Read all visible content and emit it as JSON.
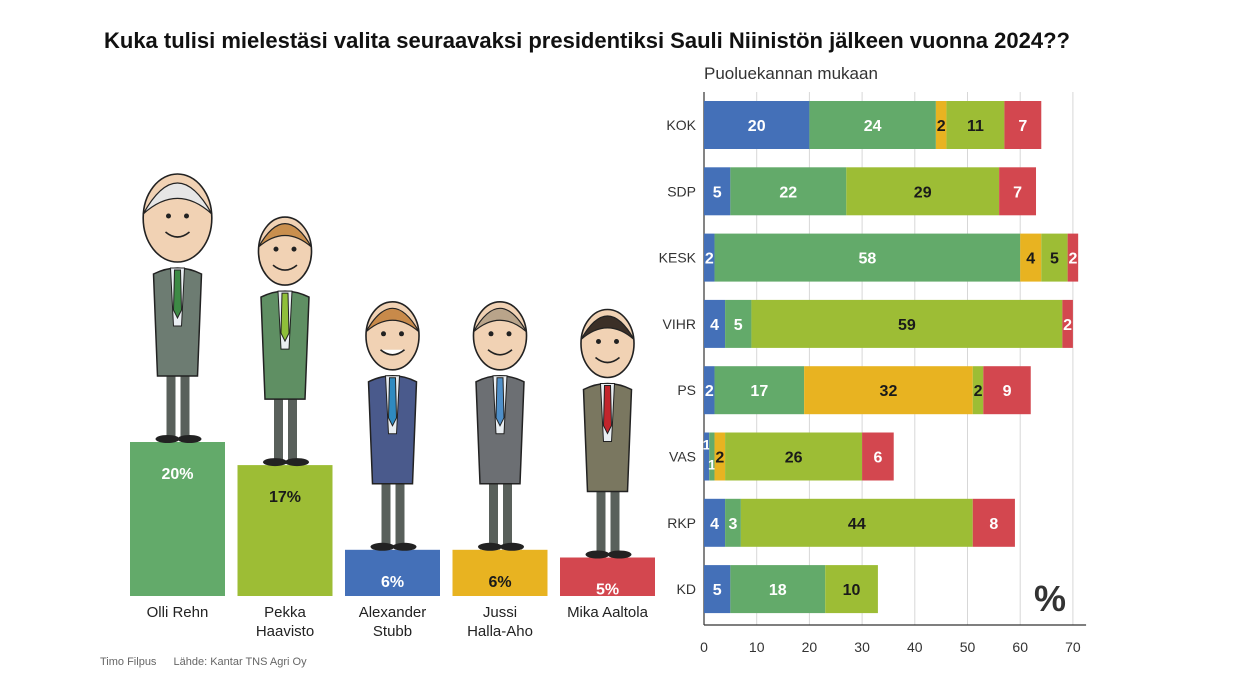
{
  "title": "Kuka tulisi mielestäsi valita seuraavaksi presidentiksi Sauli Niinistön jälkeen vuonna 2024??",
  "subtitle": "Puoluekannan mukaan",
  "credits": {
    "author": "Timo Filpus",
    "source": "Lähde: Kantar TNS Agri Oy"
  },
  "percent_sign": "%",
  "colors": {
    "Alexander Stubb": "#4470b8",
    "Olli Rehn": "#63aa6a",
    "Jussi Halla-aho": "#e8b321",
    "Pekka Haavisto": "#9dbd35",
    "Mika Aaltola": "#d3474f"
  },
  "chart_data": [
    {
      "type": "bar",
      "categories": [
        "Olli Rehn",
        "Pekka Haavisto",
        "Alexander Stubb",
        "Jussi Halla-Aho",
        "Mika Aaltola"
      ],
      "category_lines": [
        [
          "Olli Rehn"
        ],
        [
          "Pekka",
          "Haavisto"
        ],
        [
          "Alexander",
          "Stubb"
        ],
        [
          "Jussi",
          "Halla-Aho"
        ],
        [
          "Mika Aaltola"
        ]
      ],
      "values": [
        20,
        17,
        6,
        6,
        5
      ],
      "labels": [
        "20%",
        "17%",
        "6%",
        "6%",
        "5%"
      ],
      "colors": [
        "#63aa6a",
        "#9dbd35",
        "#4470b8",
        "#e8b321",
        "#d3474f"
      ],
      "illustrations": "caricature drawings of the five candidates standing on their bars"
    },
    {
      "type": "bar",
      "orientation": "horizontal",
      "stacked": true,
      "title": "Puoluekannan mukaan",
      "categories": [
        "KOK",
        "SDP",
        "KESK",
        "VIHR",
        "PS",
        "VAS",
        "RKP",
        "KD"
      ],
      "series": [
        {
          "candidate": "Alexander Stubb",
          "color": "#4470b8",
          "values": [
            20,
            5,
            2,
            4,
            2,
            1,
            4,
            5
          ]
        },
        {
          "candidate": "Olli Rehn",
          "color": "#63aa6a",
          "values": [
            24,
            22,
            58,
            5,
            17,
            1,
            3,
            18
          ]
        },
        {
          "candidate": "Jussi Halla-aho",
          "color": "#e8b321",
          "values": [
            2,
            0,
            4,
            0,
            32,
            2,
            0,
            0
          ]
        },
        {
          "candidate": "Pekka Haavisto",
          "color": "#9dbd35",
          "values": [
            11,
            29,
            5,
            59,
            2,
            26,
            44,
            10
          ]
        },
        {
          "candidate": "Mika Aaltola",
          "color": "#d3474f",
          "values": [
            7,
            7,
            2,
            2,
            9,
            6,
            8,
            0
          ]
        }
      ],
      "xlim": [
        0,
        70
      ],
      "xticks": [
        0,
        10,
        20,
        30,
        40,
        50,
        60,
        70
      ],
      "grid": true,
      "unit_label": "%"
    }
  ]
}
